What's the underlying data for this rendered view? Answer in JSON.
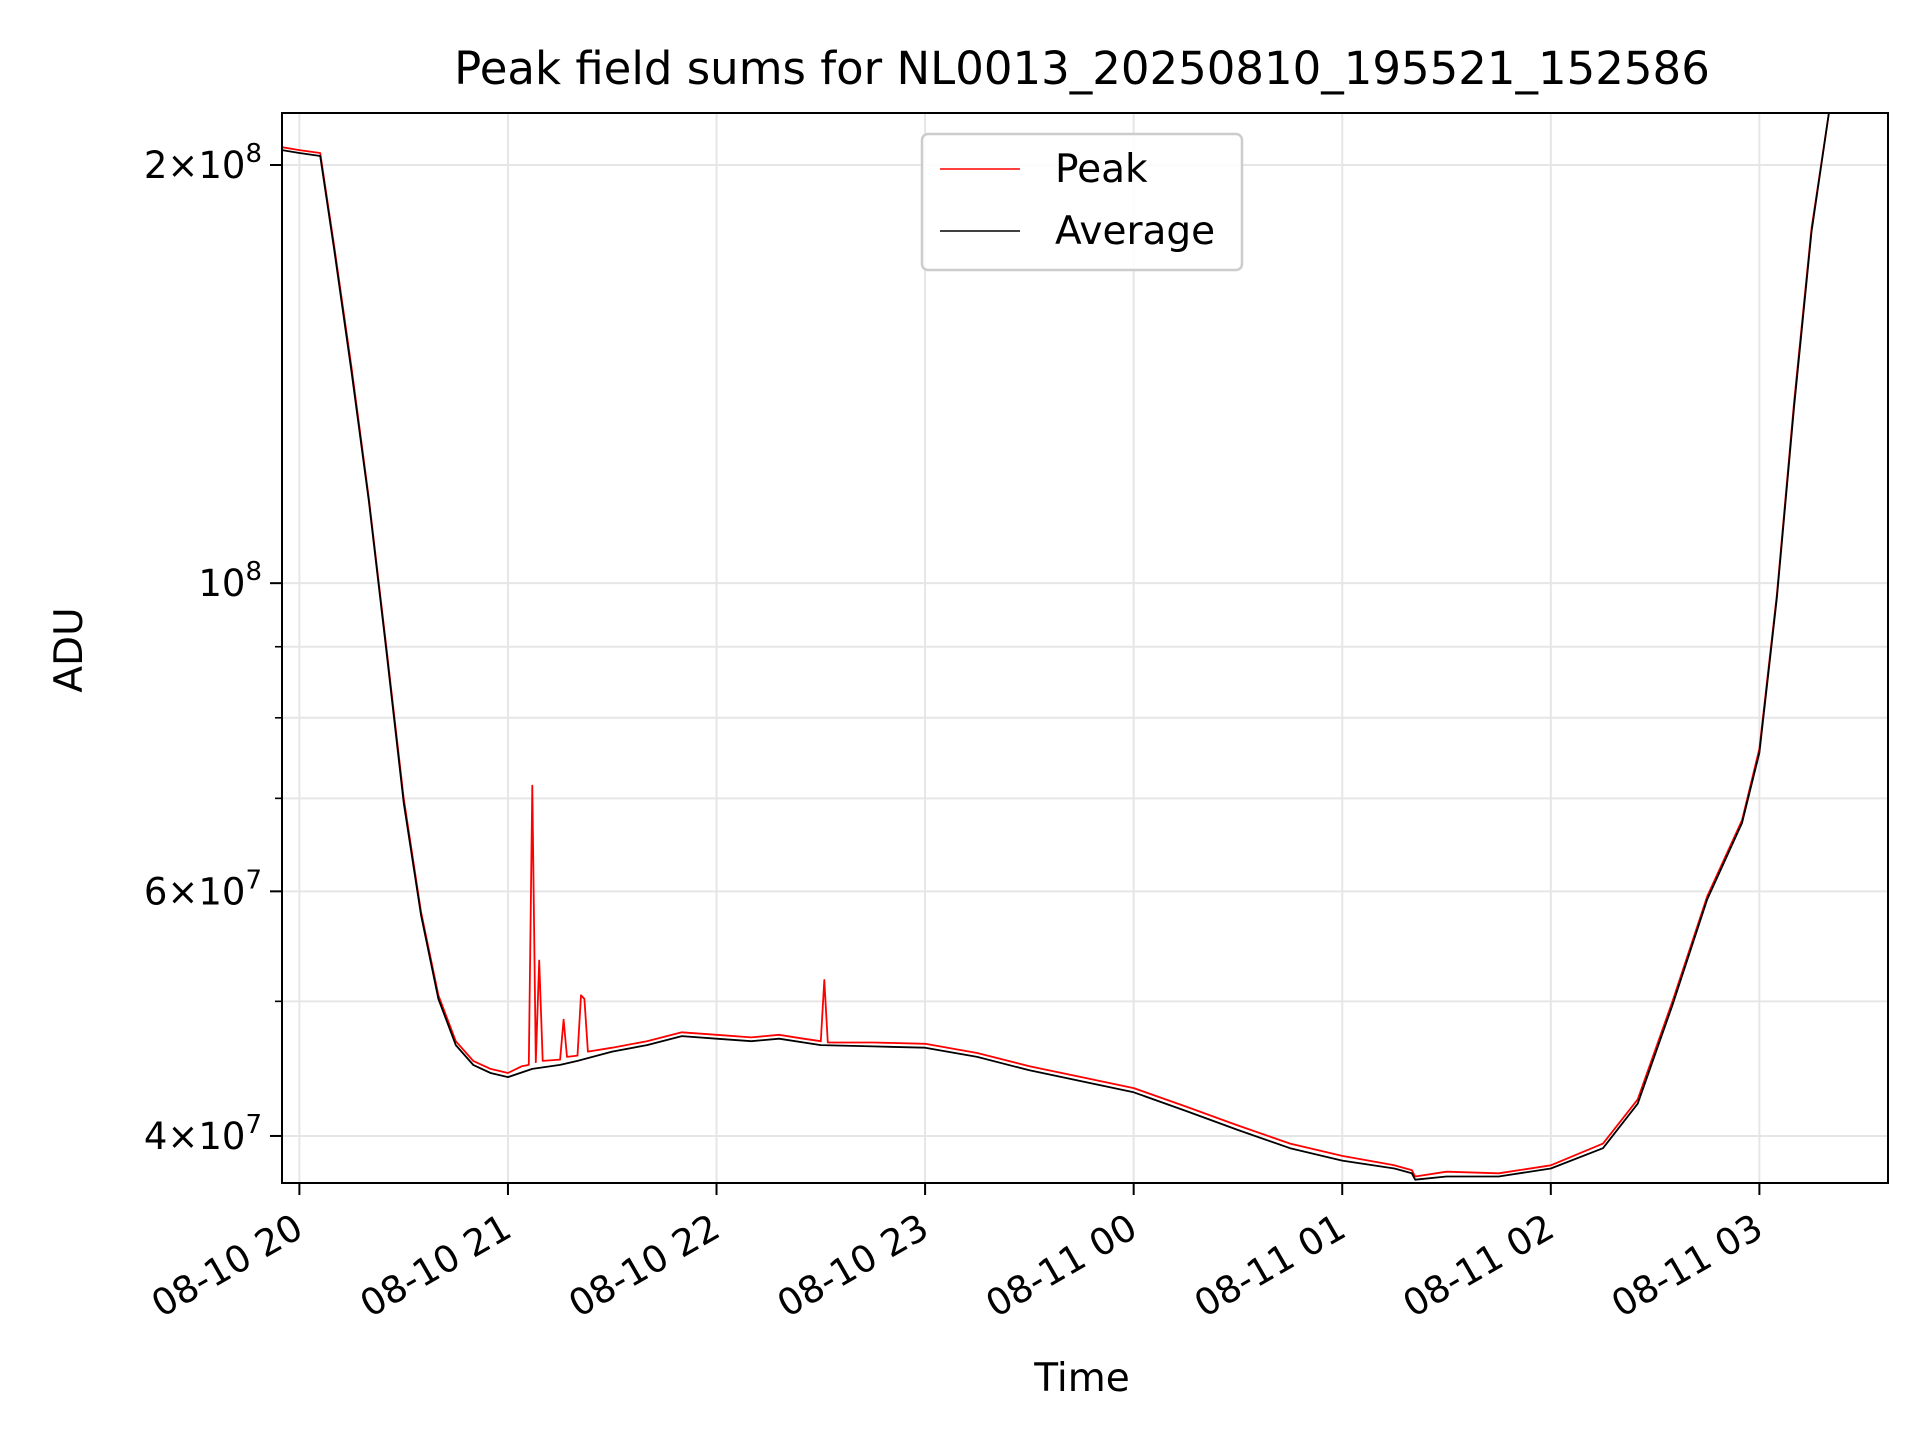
{
  "chart_data": {
    "type": "line",
    "title": "Peak field sums for NL0013_20250810_195521_152586",
    "xlabel": "Time",
    "ylabel": "ADU",
    "x_type": "datetime",
    "xlim": [
      "2025-08-10T19:55",
      "2025-08-11T03:37"
    ],
    "ylim": [
      37000000,
      218000000
    ],
    "yscale": "log",
    "grid": true,
    "legend_position": "upper center",
    "x_ticks": [
      {
        "t": "2025-08-10T20:00",
        "label": "08-10 20"
      },
      {
        "t": "2025-08-10T21:00",
        "label": "08-10 21"
      },
      {
        "t": "2025-08-10T22:00",
        "label": "08-10 22"
      },
      {
        "t": "2025-08-10T23:00",
        "label": "08-10 23"
      },
      {
        "t": "2025-08-11T00:00",
        "label": "08-11 00"
      },
      {
        "t": "2025-08-11T01:00",
        "label": "08-11 01"
      },
      {
        "t": "2025-08-11T02:00",
        "label": "08-11 02"
      },
      {
        "t": "2025-08-11T03:00",
        "label": "08-11 03"
      }
    ],
    "y_major_ticks": [
      {
        "value": 40000000,
        "base": "4×10",
        "exp": "7"
      },
      {
        "value": 60000000,
        "base": "6×10",
        "exp": "7"
      },
      {
        "value": 100000000,
        "base": "10",
        "exp": "8"
      },
      {
        "value": 200000000,
        "base": "2×10",
        "exp": "8"
      }
    ],
    "y_minor_ticks": [
      50000000,
      70000000,
      80000000,
      90000000
    ],
    "series": [
      {
        "name": "Peak",
        "color": "#ff0000",
        "points": [
          [
            "2025-08-10T19:55",
            206000000
          ],
          [
            "2025-08-10T20:00",
            205000000
          ],
          [
            "2025-08-10T20:06",
            204000000
          ],
          [
            "2025-08-10T20:10",
            175000000
          ],
          [
            "2025-08-10T20:15",
            143000000
          ],
          [
            "2025-08-10T20:20",
            115000000
          ],
          [
            "2025-08-10T20:25",
            90000000
          ],
          [
            "2025-08-10T20:30",
            70000000
          ],
          [
            "2025-08-10T20:35",
            58000000
          ],
          [
            "2025-08-10T20:40",
            50500000
          ],
          [
            "2025-08-10T20:45",
            46800000
          ],
          [
            "2025-08-10T20:50",
            45300000
          ],
          [
            "2025-08-10T20:55",
            44700000
          ],
          [
            "2025-08-10T21:00",
            44400000
          ],
          [
            "2025-08-10T21:04",
            44900000
          ],
          [
            "2025-08-10T21:06",
            45000000
          ],
          [
            "2025-08-10T21:07",
            71500000
          ],
          [
            "2025-08-10T21:08",
            45200000
          ],
          [
            "2025-08-10T21:09",
            53500000
          ],
          [
            "2025-08-10T21:10",
            45300000
          ],
          [
            "2025-08-10T21:15",
            45400000
          ],
          [
            "2025-08-10T21:16",
            48500000
          ],
          [
            "2025-08-10T21:17",
            45600000
          ],
          [
            "2025-08-10T21:20",
            45700000
          ],
          [
            "2025-08-10T21:21",
            50500000
          ],
          [
            "2025-08-10T21:22",
            50200000
          ],
          [
            "2025-08-10T21:23",
            46000000
          ],
          [
            "2025-08-10T21:30",
            46300000
          ],
          [
            "2025-08-10T21:40",
            46800000
          ],
          [
            "2025-08-10T21:50",
            47500000
          ],
          [
            "2025-08-10T22:00",
            47300000
          ],
          [
            "2025-08-10T22:10",
            47100000
          ],
          [
            "2025-08-10T22:18",
            47300000
          ],
          [
            "2025-08-10T22:25",
            47000000
          ],
          [
            "2025-08-10T22:30",
            46800000
          ],
          [
            "2025-08-10T22:31",
            51800000
          ],
          [
            "2025-08-10T22:32",
            46700000
          ],
          [
            "2025-08-10T22:45",
            46700000
          ],
          [
            "2025-08-10T23:00",
            46600000
          ],
          [
            "2025-08-10T23:15",
            45900000
          ],
          [
            "2025-08-10T23:30",
            44900000
          ],
          [
            "2025-08-10T23:45",
            44100000
          ],
          [
            "2025-08-11T00:00",
            43300000
          ],
          [
            "2025-08-11T00:15",
            42000000
          ],
          [
            "2025-08-11T00:30",
            40700000
          ],
          [
            "2025-08-11T00:45",
            39500000
          ],
          [
            "2025-08-11T01:00",
            38700000
          ],
          [
            "2025-08-11T01:15",
            38100000
          ],
          [
            "2025-08-11T01:20",
            37800000
          ],
          [
            "2025-08-11T01:21",
            37400000
          ],
          [
            "2025-08-11T01:30",
            37700000
          ],
          [
            "2025-08-11T01:45",
            37600000
          ],
          [
            "2025-08-11T02:00",
            38100000
          ],
          [
            "2025-08-11T02:15",
            39500000
          ],
          [
            "2025-08-11T02:25",
            42500000
          ],
          [
            "2025-08-11T02:35",
            50000000
          ],
          [
            "2025-08-11T02:45",
            59500000
          ],
          [
            "2025-08-11T02:55",
            67500000
          ],
          [
            "2025-08-11T03:00",
            76000000
          ],
          [
            "2025-08-11T03:05",
            98000000
          ],
          [
            "2025-08-11T03:10",
            135000000
          ],
          [
            "2025-08-11T03:15",
            180000000
          ],
          [
            "2025-08-11T03:20",
            218000000
          ]
        ]
      },
      {
        "name": "Average",
        "color": "#000000",
        "points": [
          [
            "2025-08-10T19:55",
            205000000
          ],
          [
            "2025-08-10T20:00",
            204000000
          ],
          [
            "2025-08-10T20:06",
            203000000
          ],
          [
            "2025-08-10T20:10",
            174000000
          ],
          [
            "2025-08-10T20:15",
            142000000
          ],
          [
            "2025-08-10T20:20",
            114500000
          ],
          [
            "2025-08-10T20:25",
            89500000
          ],
          [
            "2025-08-10T20:30",
            69500000
          ],
          [
            "2025-08-10T20:35",
            57700000
          ],
          [
            "2025-08-10T20:40",
            50200000
          ],
          [
            "2025-08-10T20:45",
            46500000
          ],
          [
            "2025-08-10T20:50",
            45000000
          ],
          [
            "2025-08-10T20:55",
            44400000
          ],
          [
            "2025-08-10T21:00",
            44100000
          ],
          [
            "2025-08-10T21:07",
            44700000
          ],
          [
            "2025-08-10T21:15",
            45000000
          ],
          [
            "2025-08-10T21:20",
            45300000
          ],
          [
            "2025-08-10T21:30",
            46000000
          ],
          [
            "2025-08-10T21:40",
            46500000
          ],
          [
            "2025-08-10T21:50",
            47200000
          ],
          [
            "2025-08-10T22:00",
            47000000
          ],
          [
            "2025-08-10T22:10",
            46800000
          ],
          [
            "2025-08-10T22:18",
            47000000
          ],
          [
            "2025-08-10T22:30",
            46500000
          ],
          [
            "2025-08-10T22:45",
            46400000
          ],
          [
            "2025-08-10T23:00",
            46300000
          ],
          [
            "2025-08-10T23:15",
            45600000
          ],
          [
            "2025-08-10T23:30",
            44600000
          ],
          [
            "2025-08-10T23:45",
            43800000
          ],
          [
            "2025-08-11T00:00",
            43000000
          ],
          [
            "2025-08-11T00:15",
            41700000
          ],
          [
            "2025-08-11T00:30",
            40400000
          ],
          [
            "2025-08-11T00:45",
            39200000
          ],
          [
            "2025-08-11T01:00",
            38400000
          ],
          [
            "2025-08-11T01:15",
            37900000
          ],
          [
            "2025-08-11T01:20",
            37600000
          ],
          [
            "2025-08-11T01:21",
            37200000
          ],
          [
            "2025-08-11T01:30",
            37400000
          ],
          [
            "2025-08-11T01:45",
            37400000
          ],
          [
            "2025-08-11T02:00",
            37900000
          ],
          [
            "2025-08-11T02:15",
            39200000
          ],
          [
            "2025-08-11T02:25",
            42200000
          ],
          [
            "2025-08-11T02:35",
            49700000
          ],
          [
            "2025-08-11T02:45",
            59200000
          ],
          [
            "2025-08-11T02:55",
            67200000
          ],
          [
            "2025-08-11T03:00",
            75500000
          ],
          [
            "2025-08-11T03:05",
            97500000
          ],
          [
            "2025-08-11T03:10",
            134000000
          ],
          [
            "2025-08-11T03:15",
            179000000
          ],
          [
            "2025-08-11T03:20",
            218000000
          ]
        ]
      }
    ]
  }
}
